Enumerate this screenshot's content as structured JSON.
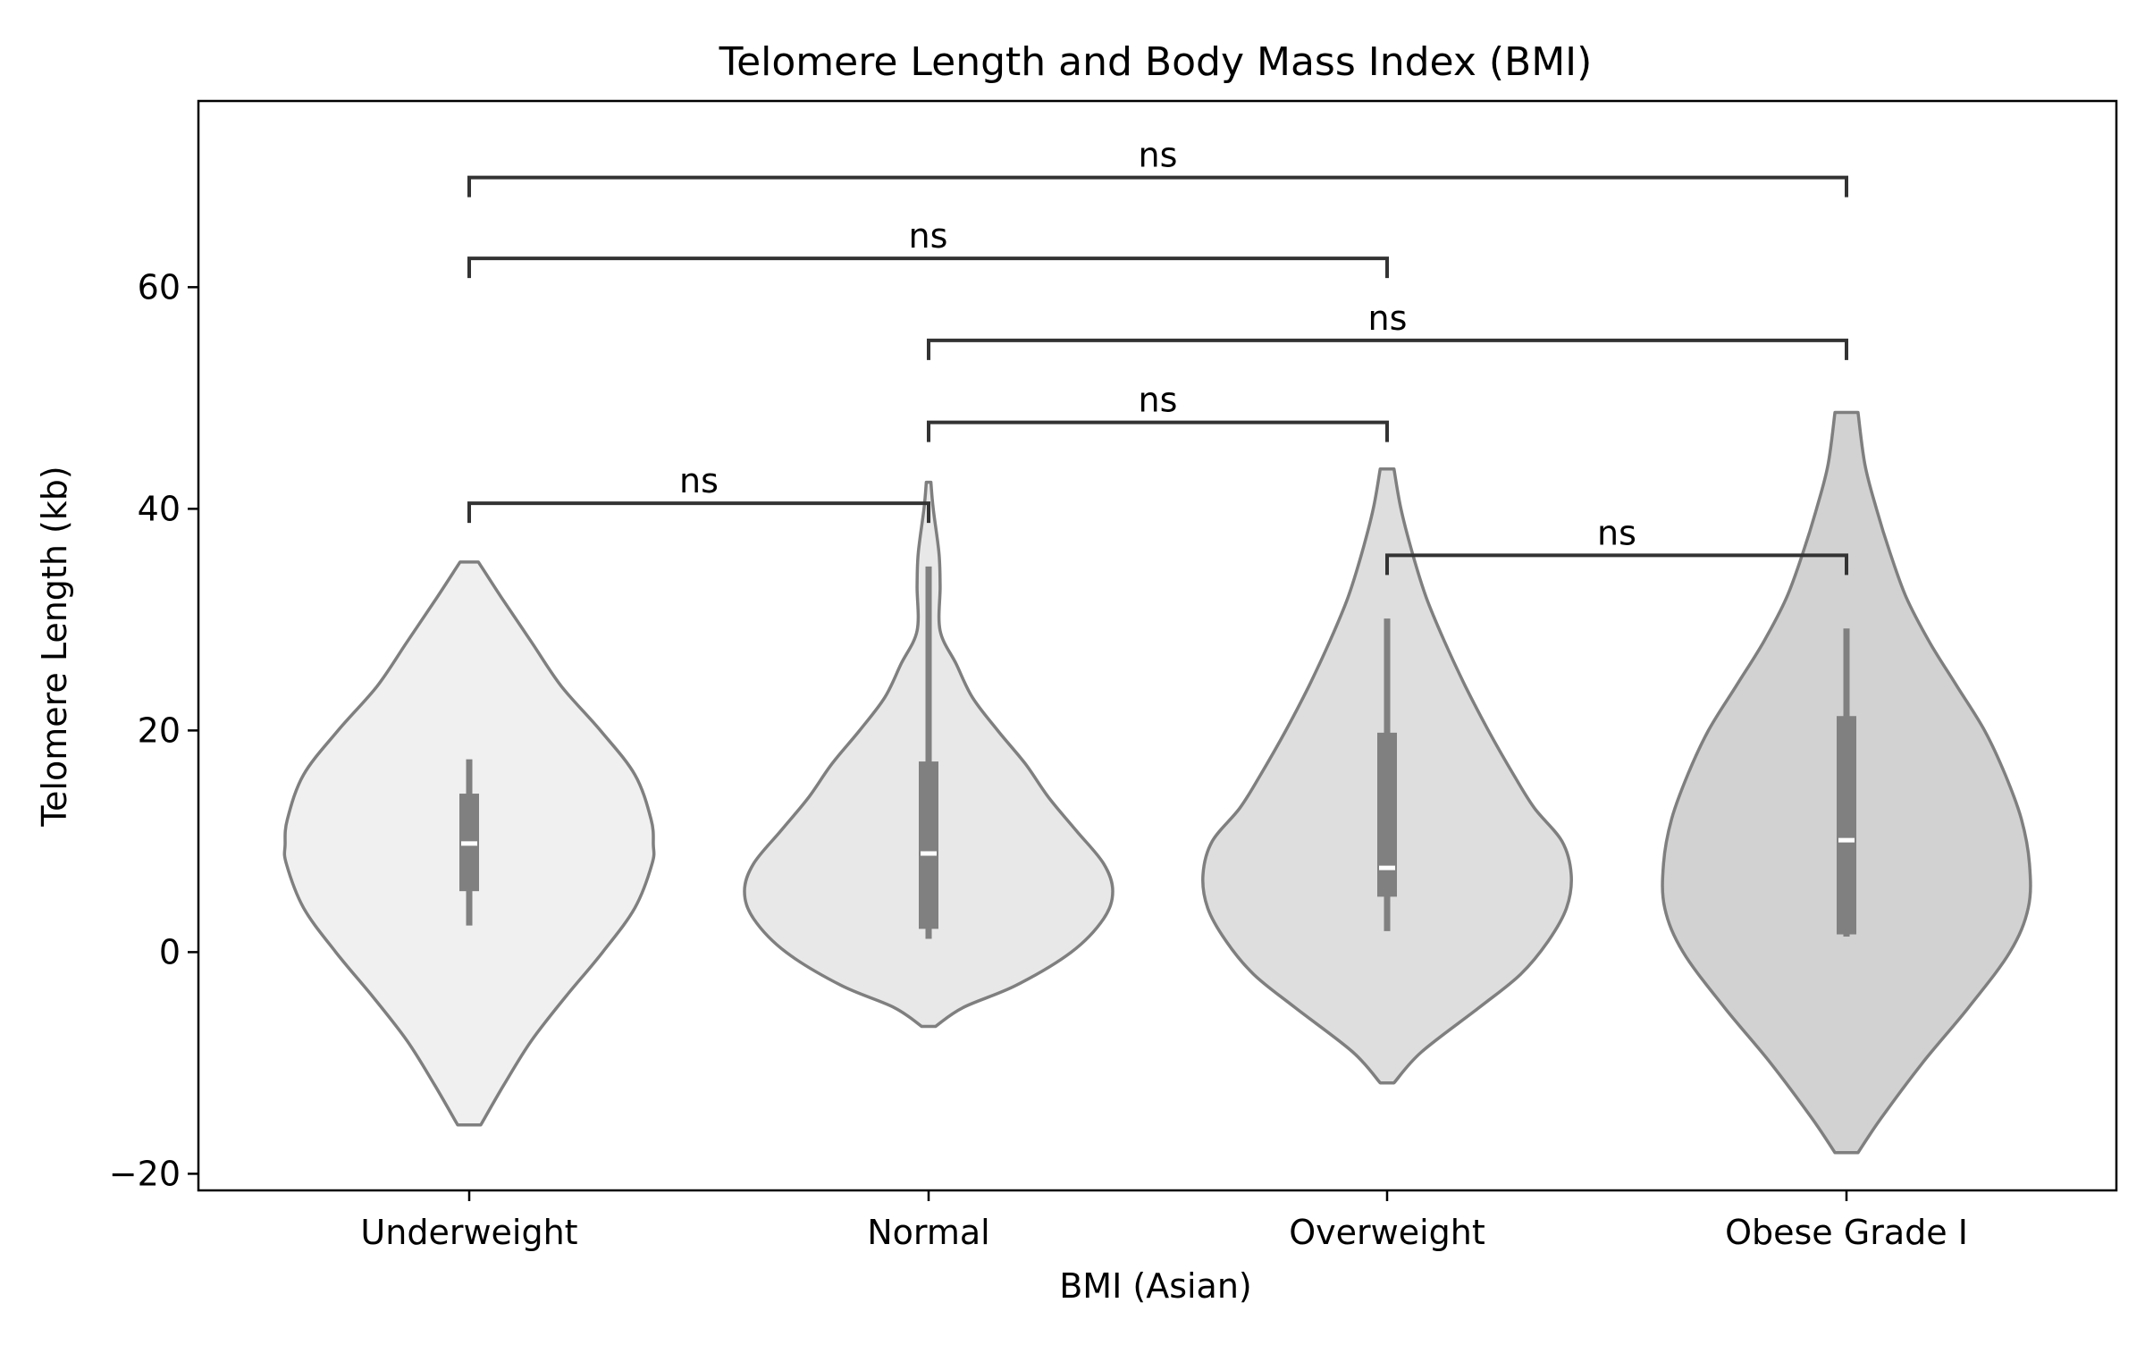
{
  "chart_data": {
    "type": "violin",
    "title": "Telomere Length and Body Mass Index (BMI)",
    "xlabel": "BMI (Asian)",
    "ylabel": "Telomere Length (kb)",
    "ylim": [
      -21.5,
      76.8
    ],
    "yticks": [
      -20,
      0,
      20,
      40,
      60
    ],
    "ytick_labels": [
      "−20",
      "0",
      "20",
      "40",
      "60"
    ],
    "grid": false,
    "categories": [
      "Underweight",
      "Normal",
      "Overweight",
      "Obese Grade I"
    ],
    "violins": [
      {
        "category": "Underweight",
        "fill": "#f0f0f0",
        "median": 9.8,
        "q1": 5.5,
        "q3": 14.3,
        "whisker_low": 2.4,
        "whisker_high": 17.4,
        "profile": [
          [
            -15.6,
            0.05
          ],
          [
            -12,
            0.15
          ],
          [
            -8,
            0.27
          ],
          [
            -4,
            0.42
          ],
          [
            0,
            0.58
          ],
          [
            4,
            0.72
          ],
          [
            8,
            0.795
          ],
          [
            9.7,
            0.8
          ],
          [
            12,
            0.79
          ],
          [
            16,
            0.72
          ],
          [
            20,
            0.57
          ],
          [
            24,
            0.4
          ],
          [
            28,
            0.27
          ],
          [
            32,
            0.14
          ],
          [
            35.2,
            0.04
          ]
        ]
      },
      {
        "category": "Normal",
        "fill": "#e8e8e8",
        "median": 8.9,
        "q1": 2.1,
        "q3": 17.2,
        "whisker_low": 1.2,
        "whisker_high": 34.8,
        "profile": [
          [
            -6.7,
            0.03
          ],
          [
            -5,
            0.15
          ],
          [
            -3,
            0.38
          ],
          [
            0,
            0.62
          ],
          [
            3,
            0.76
          ],
          [
            5.5,
            0.8
          ],
          [
            8,
            0.76
          ],
          [
            11,
            0.64
          ],
          [
            14,
            0.52
          ],
          [
            17,
            0.42
          ],
          [
            20,
            0.3
          ],
          [
            23,
            0.19
          ],
          [
            26,
            0.12
          ],
          [
            29,
            0.05
          ],
          [
            33,
            0.05
          ],
          [
            36,
            0.045
          ],
          [
            40,
            0.02
          ],
          [
            42.4,
            0.01
          ]
        ]
      },
      {
        "category": "Overweight",
        "fill": "#dedede",
        "median": 7.6,
        "q1": 5.0,
        "q3": 19.8,
        "whisker_low": 1.9,
        "whisker_high": 30.1,
        "profile": [
          [
            -11.8,
            0.03
          ],
          [
            -9,
            0.15
          ],
          [
            -5,
            0.4
          ],
          [
            -2,
            0.58
          ],
          [
            1,
            0.7
          ],
          [
            4,
            0.78
          ],
          [
            7,
            0.8
          ],
          [
            10,
            0.76
          ],
          [
            13,
            0.64
          ],
          [
            16,
            0.55
          ],
          [
            20,
            0.44
          ],
          [
            24,
            0.34
          ],
          [
            28,
            0.25
          ],
          [
            32,
            0.17
          ],
          [
            36,
            0.11
          ],
          [
            40,
            0.06
          ],
          [
            43.6,
            0.03
          ]
        ]
      },
      {
        "category": "Obese Grade I",
        "fill": "#d2d2d2",
        "median": 10.1,
        "q1": 1.6,
        "q3": 21.3,
        "whisker_low": 1.4,
        "whisker_high": 29.2,
        "profile": [
          [
            -18.1,
            0.05
          ],
          [
            -15,
            0.15
          ],
          [
            -10,
            0.33
          ],
          [
            -5,
            0.53
          ],
          [
            0,
            0.71
          ],
          [
            4,
            0.79
          ],
          [
            8,
            0.795
          ],
          [
            12,
            0.76
          ],
          [
            16,
            0.69
          ],
          [
            20,
            0.6
          ],
          [
            24,
            0.48
          ],
          [
            28,
            0.36
          ],
          [
            32,
            0.26
          ],
          [
            36,
            0.19
          ],
          [
            40,
            0.13
          ],
          [
            44,
            0.08
          ],
          [
            48.7,
            0.05
          ]
        ]
      }
    ],
    "annotations": [
      {
        "from": 0,
        "to": 1,
        "y": 40.5,
        "label": "ns"
      },
      {
        "from": 1,
        "to": 2,
        "y": 47.8,
        "label": "ns"
      },
      {
        "from": 1,
        "to": 3,
        "y": 55.2,
        "label": "ns"
      },
      {
        "from": 0,
        "to": 2,
        "y": 62.6,
        "label": "ns"
      },
      {
        "from": 0,
        "to": 3,
        "y": 69.9,
        "label": "ns"
      },
      {
        "from": 2,
        "to": 3,
        "y": 35.8,
        "label": "ns"
      }
    ],
    "colors": {
      "violin_edge": "#7f7f7f",
      "box": "#808080",
      "median_mark": "#ffffff",
      "bracket": "#333333",
      "axes": "#000000"
    }
  }
}
